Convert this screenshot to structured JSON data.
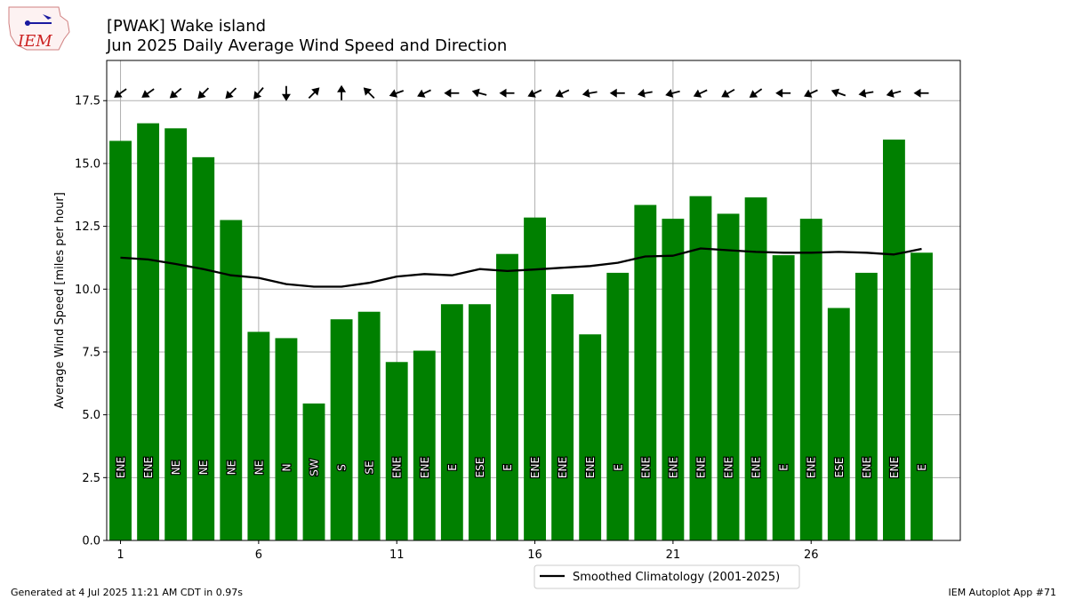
{
  "logo_text": "IEM",
  "footer": {
    "left": "Generated at 4 Jul 2025 11:21 AM CDT in 0.97s",
    "right": "IEM Autoplot App #71"
  },
  "chart_data": {
    "type": "bar",
    "title": "[PWAK] Wake island",
    "subtitle": "Jun 2025 Daily Average Wind Speed and Direction",
    "ylabel": "Average Wind Speed [miles per hour]",
    "xlabel": "",
    "ylim": [
      0,
      19.1
    ],
    "xlim": [
      0.5,
      31.4
    ],
    "yticks": [
      0.0,
      2.5,
      5.0,
      7.5,
      10.0,
      12.5,
      15.0,
      17.5
    ],
    "ytick_labels": [
      "0.0",
      "2.5",
      "5.0",
      "7.5",
      "10.0",
      "12.5",
      "15.0",
      "17.5"
    ],
    "xticks": [
      1,
      6,
      11,
      16,
      21,
      26
    ],
    "xtick_labels": [
      "1",
      "6",
      "11",
      "16",
      "21",
      "26"
    ],
    "grid": true,
    "bar_color": "#008000",
    "days": [
      1,
      2,
      3,
      4,
      5,
      6,
      7,
      8,
      9,
      10,
      11,
      12,
      13,
      14,
      15,
      16,
      17,
      18,
      19,
      20,
      21,
      22,
      23,
      24,
      25,
      26,
      27,
      28,
      29,
      30
    ],
    "values": [
      15.9,
      16.6,
      16.4,
      15.25,
      12.75,
      8.3,
      8.05,
      5.45,
      8.8,
      9.1,
      7.1,
      7.55,
      9.4,
      9.4,
      11.4,
      12.85,
      9.8,
      8.2,
      10.65,
      13.35,
      12.8,
      13.7,
      13.0,
      13.65,
      11.35,
      12.8,
      9.25,
      10.65,
      15.95,
      11.45
    ],
    "directions": [
      "ENE",
      "ENE",
      "NE",
      "NE",
      "NE",
      "NE",
      "N",
      "SW",
      "S",
      "SE",
      "ENE",
      "ENE",
      "E",
      "ESE",
      "E",
      "ENE",
      "ENE",
      "ENE",
      "E",
      "ENE",
      "ENE",
      "ENE",
      "ENE",
      "ENE",
      "E",
      "ENE",
      "ESE",
      "ENE",
      "ENE",
      "E"
    ],
    "arrow_bearings": [
      55,
      55,
      50,
      45,
      45,
      40,
      0,
      225,
      180,
      135,
      70,
      65,
      90,
      105,
      90,
      65,
      65,
      80,
      90,
      80,
      75,
      65,
      60,
      55,
      90,
      65,
      110,
      80,
      75,
      90
    ],
    "series": [
      {
        "name": "Smoothed Climatology (2001-2025)",
        "type": "line",
        "color": "#000000",
        "values": [
          11.25,
          11.18,
          11.0,
          10.8,
          10.55,
          10.45,
          10.2,
          10.1,
          10.1,
          10.25,
          10.5,
          10.6,
          10.55,
          10.8,
          10.72,
          10.78,
          10.85,
          10.92,
          11.05,
          11.3,
          11.33,
          11.62,
          11.55,
          11.48,
          11.45,
          11.45,
          11.48,
          11.45,
          11.38,
          11.6
        ]
      }
    ],
    "legend": "bottom-center"
  }
}
